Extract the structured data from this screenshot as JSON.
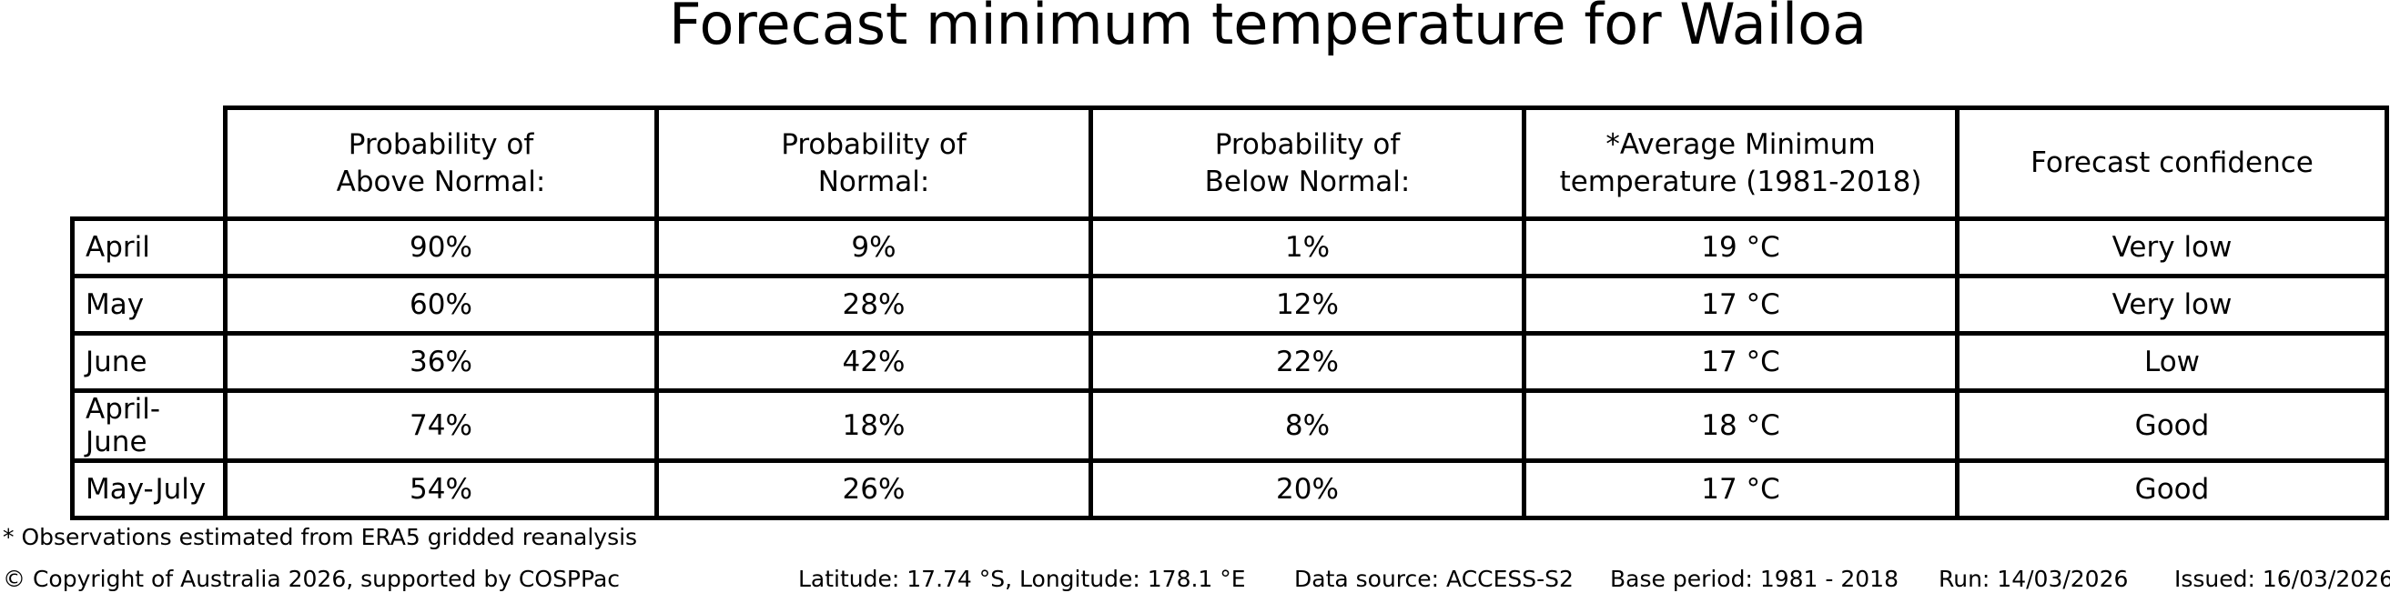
{
  "title": "Forecast minimum temperature for Wailoa",
  "table": {
    "columns": [
      "Probability of\nAbove Normal:",
      "Probability of\nNormal:",
      "Probability of\nBelow Normal:",
      "*Average Minimum\ntemperature (1981-2018)",
      "Forecast confidence"
    ],
    "rows": [
      {
        "label": "April",
        "above": "90%",
        "normal": "9%",
        "below": "1%",
        "avg_min": "19 °C",
        "confidence": "Very low"
      },
      {
        "label": "May",
        "above": "60%",
        "normal": "28%",
        "below": "12%",
        "avg_min": "17 °C",
        "confidence": "Very low"
      },
      {
        "label": "June",
        "above": "36%",
        "normal": "42%",
        "below": "22%",
        "avg_min": "17 °C",
        "confidence": "Low"
      },
      {
        "label": "April-June",
        "above": "74%",
        "normal": "18%",
        "below": "8%",
        "avg_min": "18 °C",
        "confidence": "Good"
      },
      {
        "label": "May-July",
        "above": "54%",
        "normal": "26%",
        "below": "20%",
        "avg_min": "17 °C",
        "confidence": "Good"
      }
    ]
  },
  "footnote": "* Observations estimated from ERA5 gridded reanalysis",
  "footer": {
    "copyright": "© Copyright of Australia 2026, supported by COSPPac",
    "location": "Latitude: 17.74 °S, Longitude: 178.1 °E",
    "data_source": "Data source: ACCESS-S2",
    "base_period": "Base period: 1981 - 2018",
    "run": "Run: 14/03/2026",
    "issued": "Issued: 16/03/2026"
  },
  "colors": {
    "background": "#ffffff",
    "text": "#000000",
    "border": "#000000"
  },
  "chart_data": {
    "type": "table",
    "title": "Forecast minimum temperature for Wailoa",
    "columns": [
      "",
      "Probability of Above Normal:",
      "Probability of Normal:",
      "Probability of Below Normal:",
      "*Average Minimum temperature (1981-2018)",
      "Forecast confidence"
    ],
    "rows": [
      [
        "April",
        "90%",
        "9%",
        "1%",
        "19 °C",
        "Very low"
      ],
      [
        "May",
        "60%",
        "28%",
        "12%",
        "17 °C",
        "Very low"
      ],
      [
        "June",
        "36%",
        "42%",
        "22%",
        "17 °C",
        "Low"
      ],
      [
        "April-June",
        "74%",
        "18%",
        "8%",
        "18 °C",
        "Good"
      ],
      [
        "May-July",
        "54%",
        "26%",
        "20%",
        "17 °C",
        "Good"
      ]
    ],
    "footnote": "* Observations estimated from ERA5 gridded reanalysis",
    "footer_items": [
      "© Copyright of Australia 2026, supported by COSPPac",
      "Latitude: 17.74 °S, Longitude: 178.1 °E",
      "Data source: ACCESS-S2",
      "Base period: 1981 - 2018",
      "Run: 14/03/2026",
      "Issued: 16/03/2026"
    ]
  }
}
